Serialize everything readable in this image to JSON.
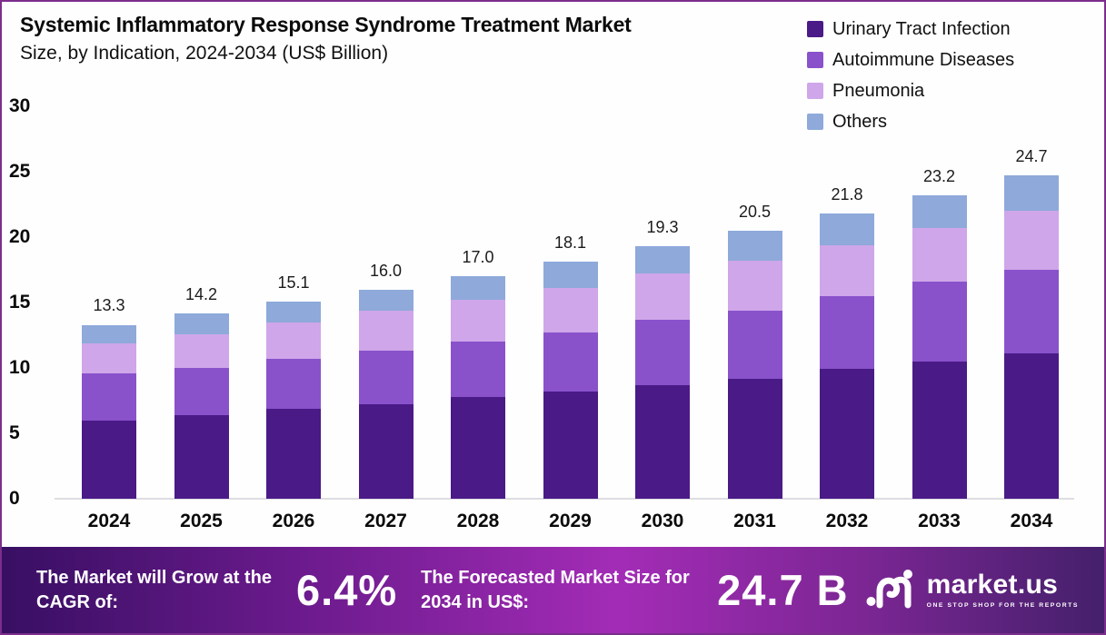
{
  "title": {
    "line1": "Systemic Inflammatory Response Syndrome Treatment Market",
    "line2": "Size, by Indication, 2024-2034 (US$ Billion)"
  },
  "legend": [
    {
      "label": "Urinary Tract Infection",
      "color": "#4a1a87"
    },
    {
      "label": "Autoimmune Diseases",
      "color": "#8952cb"
    },
    {
      "label": "Pneumonia",
      "color": "#cfa6e9"
    },
    {
      "label": "Others",
      "color": "#8ea9da"
    }
  ],
  "chart_data": {
    "type": "bar",
    "stacked": true,
    "title": "Systemic Inflammatory Response Syndrome Treatment Market Size, by Indication, 2024-2034 (US$ Billion)",
    "categories": [
      "2024",
      "2025",
      "2026",
      "2027",
      "2028",
      "2029",
      "2030",
      "2031",
      "2032",
      "2033",
      "2034"
    ],
    "series": [
      {
        "name": "Urinary Tract Infection",
        "color": "#4a1a87",
        "values": [
          6.0,
          6.4,
          6.9,
          7.2,
          7.8,
          8.2,
          8.7,
          9.2,
          9.9,
          10.5,
          11.1
        ]
      },
      {
        "name": "Autoimmune Diseases",
        "color": "#8952cb",
        "values": [
          3.6,
          3.6,
          3.8,
          4.1,
          4.2,
          4.5,
          5.0,
          5.2,
          5.6,
          6.1,
          6.4
        ]
      },
      {
        "name": "Pneumonia",
        "color": "#cfa6e9",
        "values": [
          2.3,
          2.6,
          2.8,
          3.1,
          3.2,
          3.4,
          3.5,
          3.8,
          3.9,
          4.1,
          4.5
        ]
      },
      {
        "name": "Others",
        "color": "#8ea9da",
        "values": [
          1.4,
          1.6,
          1.6,
          1.6,
          1.8,
          2.0,
          2.1,
          2.3,
          2.4,
          2.5,
          2.7
        ]
      }
    ],
    "totals": [
      13.3,
      14.2,
      15.1,
      16.0,
      17.0,
      18.1,
      19.3,
      20.5,
      21.8,
      23.2,
      24.7
    ],
    "xlabel": "",
    "ylabel": "US$ Billion",
    "y_axis": {
      "min": 0,
      "max": 30,
      "step": 5,
      "ticks": [
        0,
        5,
        10,
        15,
        20,
        25,
        30
      ]
    },
    "grid": false,
    "legend_position": "top-right"
  },
  "banner": {
    "cagr_label": "The Market will Grow at the CAGR of:",
    "cagr_value": "6.4%",
    "forecast_label": "The Forecasted Market Size for 2034 in US$:",
    "forecast_value": "24.7 B",
    "brand": {
      "name": "market.us",
      "tagline": "ONE STOP SHOP FOR THE REPORTS",
      "logo_icon": "market-us-swirl-icon"
    }
  },
  "colors": {
    "frame_border": "#7b2e8c",
    "banner_gradient_start": "#380f63",
    "banner_gradient_mid": "#a32cb6",
    "banner_gradient_end": "#44206b",
    "axis_line": "#dddde2",
    "text": "#0b0b0b"
  }
}
